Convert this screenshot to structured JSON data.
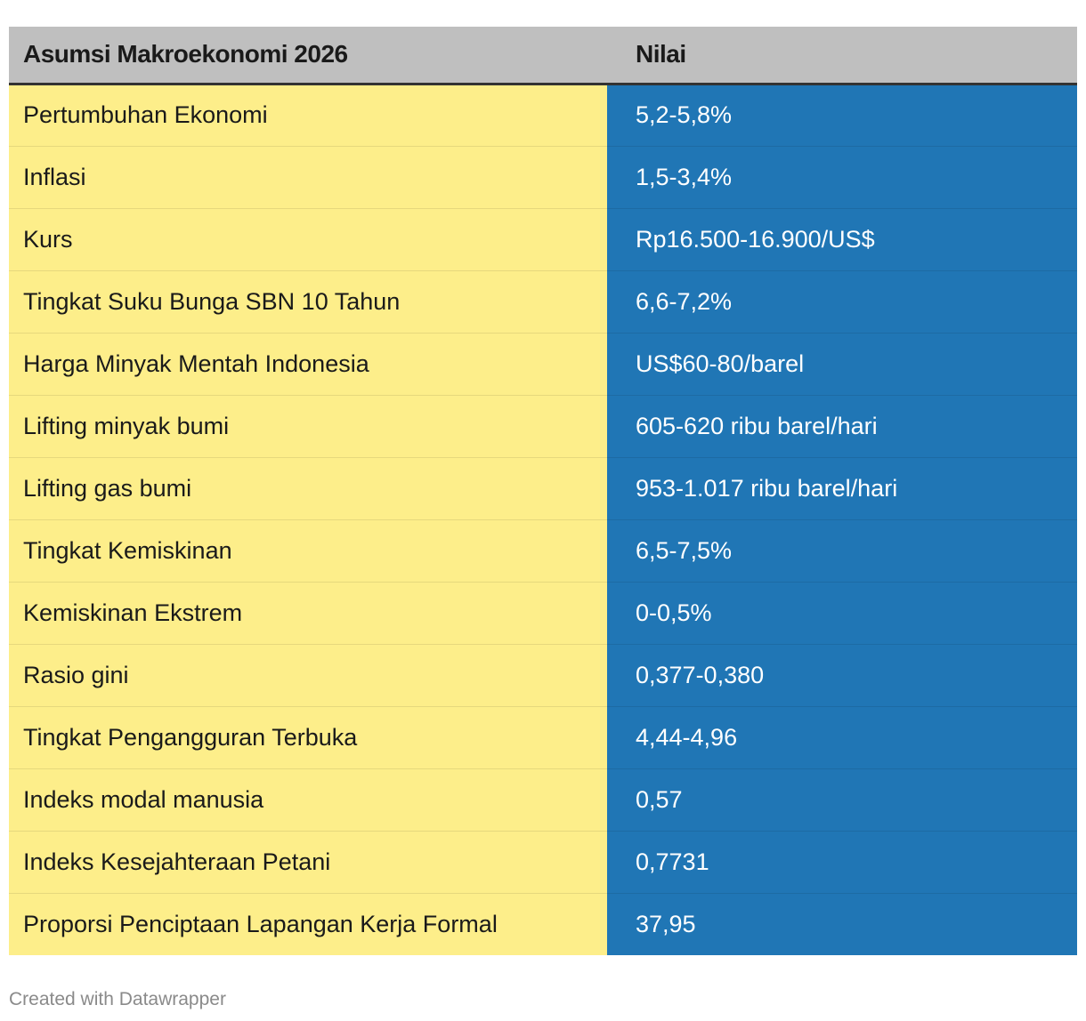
{
  "chart_data": {
    "type": "table",
    "columns": [
      "Asumsi Makroekonomi 2026",
      "Nilai"
    ],
    "rows": [
      [
        "Pertumbuhan Ekonomi",
        "5,2-5,8%"
      ],
      [
        "Inflasi",
        "1,5-3,4%"
      ],
      [
        "Kurs",
        "Rp16.500-16.900/US$"
      ],
      [
        "Tingkat Suku Bunga SBN 10 Tahun",
        "6,6-7,2%"
      ],
      [
        "Harga Minyak Mentah Indonesia",
        "US$60-80/barel"
      ],
      [
        "Lifting minyak bumi",
        "605-620 ribu barel/hari"
      ],
      [
        "Lifting gas bumi",
        "953-1.017 ribu barel/hari"
      ],
      [
        "Tingkat Kemiskinan",
        "6,5-7,5%"
      ],
      [
        "Kemiskinan Ekstrem",
        "0-0,5%"
      ],
      [
        "Rasio gini",
        "0,377-0,380"
      ],
      [
        "Tingkat Pengangguran Terbuka",
        "4,44-4,96"
      ],
      [
        "Indeks modal manusia",
        "0,57"
      ],
      [
        "Indeks Kesejahteraan Petani",
        "0,7731"
      ],
      [
        "Proporsi Penciptaan Lapangan Kerja Formal",
        "37,95"
      ]
    ],
    "colors": {
      "header_bg": "#bfbfbf",
      "label_bg": "#fdee8a",
      "value_bg": "#2076b5",
      "value_text": "#ffffff"
    }
  },
  "footer": {
    "credit": "Created with Datawrapper"
  }
}
